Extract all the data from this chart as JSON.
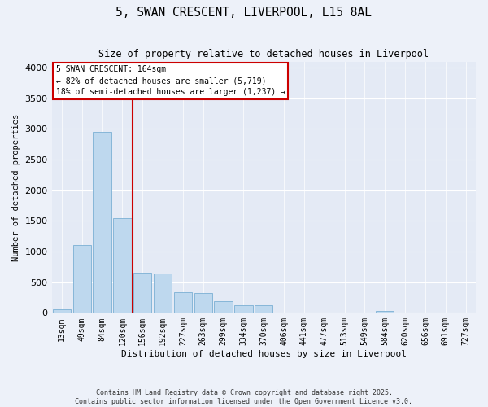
{
  "title": "5, SWAN CRESCENT, LIVERPOOL, L15 8AL",
  "subtitle": "Size of property relative to detached houses in Liverpool",
  "xlabel": "Distribution of detached houses by size in Liverpool",
  "ylabel": "Number of detached properties",
  "categories": [
    "13sqm",
    "49sqm",
    "84sqm",
    "120sqm",
    "156sqm",
    "192sqm",
    "227sqm",
    "263sqm",
    "299sqm",
    "334sqm",
    "370sqm",
    "406sqm",
    "441sqm",
    "477sqm",
    "513sqm",
    "549sqm",
    "584sqm",
    "620sqm",
    "656sqm",
    "691sqm",
    "727sqm"
  ],
  "values": [
    55,
    1100,
    2950,
    1540,
    650,
    640,
    330,
    325,
    190,
    120,
    120,
    0,
    0,
    0,
    0,
    0,
    25,
    0,
    0,
    0,
    0
  ],
  "bar_color": "#bed8ee",
  "bar_edge_color": "#7bafd4",
  "vline_color": "#cc0000",
  "vline_pos": 3.5,
  "annotation_text": "5 SWAN CRESCENT: 164sqm\n← 82% of detached houses are smaller (5,719)\n18% of semi-detached houses are larger (1,237) →",
  "annotation_box_facecolor": "white",
  "annotation_box_edgecolor": "#cc0000",
  "ylim": [
    0,
    4100
  ],
  "yticks": [
    0,
    500,
    1000,
    1500,
    2000,
    2500,
    3000,
    3500,
    4000
  ],
  "footnote1": "Contains HM Land Registry data © Crown copyright and database right 2025.",
  "footnote2": "Contains public sector information licensed under the Open Government Licence v3.0.",
  "fig_bg_color": "#edf1f9",
  "plot_bg_color": "#e4eaf5"
}
